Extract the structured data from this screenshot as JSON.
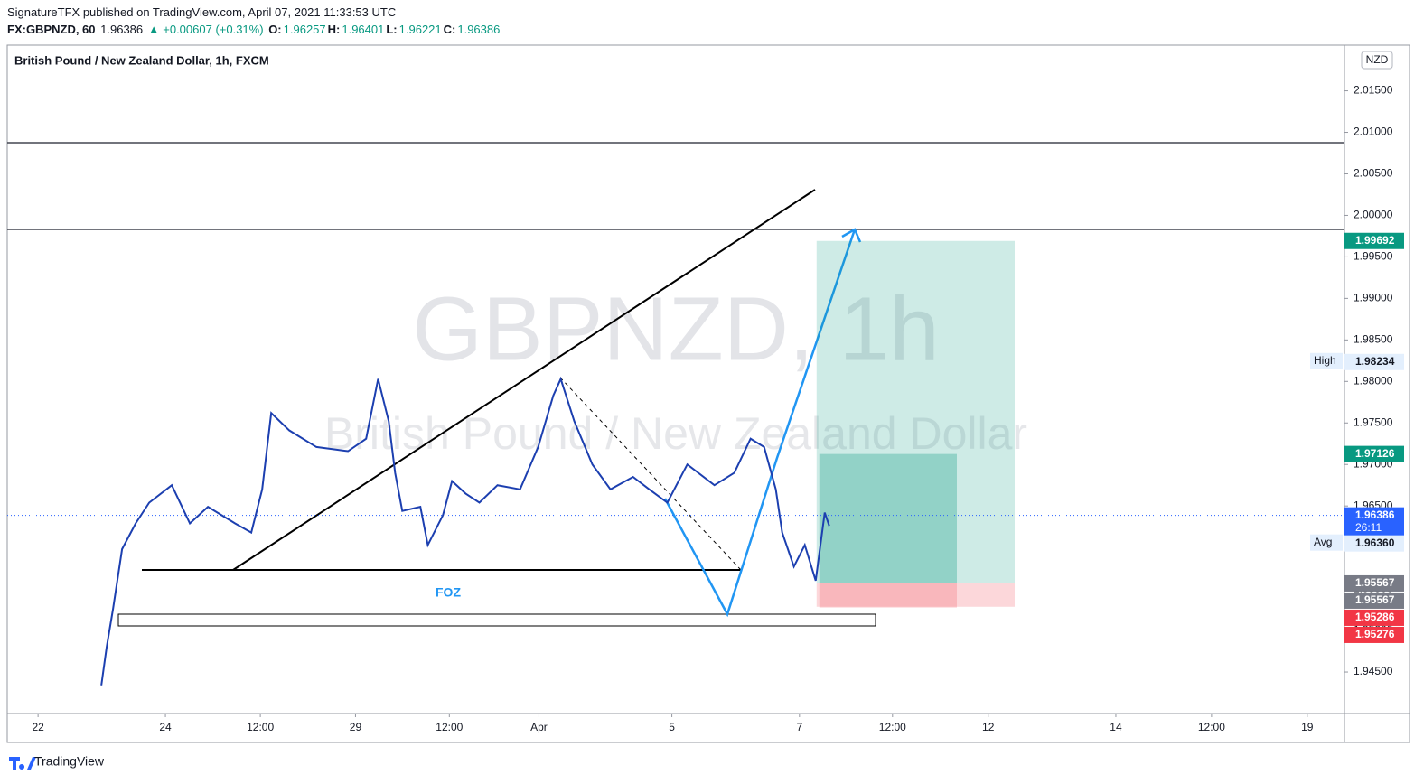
{
  "header": {
    "publisher": "SignatureTFX published on TradingView.com, April 07, 2021 11:33:53 UTC",
    "symbol": "FX:GBPNZD, 60",
    "last": "1.96386",
    "change": "▲ +0.00607 (+0.31%)",
    "ohlc": [
      {
        "key": "O:",
        "value": "1.96257"
      },
      {
        "key": "H:",
        "value": "1.96401"
      },
      {
        "key": "L:",
        "value": "1.96221"
      },
      {
        "key": "C:",
        "value": "1.96386"
      }
    ]
  },
  "chart_data": {
    "type": "line",
    "title": "British Pound / New Zealand Dollar, 1h, FXCM",
    "watermark": "GBPNZD, 1h",
    "watermark_subtitle": "British Pound / New Zealand Dollar",
    "currency": "NZD",
    "annotation": "FOZ",
    "xlim": [
      0,
      503
    ],
    "xticks": [
      {
        "value": 11.6,
        "label": "22"
      },
      {
        "value": 59.5,
        "label": "24"
      },
      {
        "value": 95.2,
        "label": "12:00"
      },
      {
        "value": 131,
        "label": "29"
      },
      {
        "value": 166.3,
        "label": "12:00"
      },
      {
        "value": 200,
        "label": "Apr"
      },
      {
        "value": 250,
        "label": "5"
      },
      {
        "value": 298,
        "label": "7"
      },
      {
        "value": 333,
        "label": "12:00"
      },
      {
        "value": 369,
        "label": "12"
      },
      {
        "value": 417,
        "label": "14"
      },
      {
        "value": 453,
        "label": "12:00"
      },
      {
        "value": 489,
        "label": "19"
      }
    ],
    "ylim": [
      1.94,
      2.0205
    ],
    "yticks": [
      {
        "value": 1.945,
        "label": "1.94500"
      },
      {
        "value": 1.95,
        "label": "1.95000"
      },
      {
        "value": 1.955,
        "label": "1.95500"
      },
      {
        "value": 1.96,
        "label": "1.96000"
      },
      {
        "value": 1.965,
        "label": "1.96500"
      },
      {
        "value": 1.97,
        "label": "1.97000"
      },
      {
        "value": 1.975,
        "label": "1.97500"
      },
      {
        "value": 1.98,
        "label": "1.98000"
      },
      {
        "value": 1.985,
        "label": "1.98500"
      },
      {
        "value": 1.99,
        "label": "1.99000"
      },
      {
        "value": 1.995,
        "label": "1.99500"
      },
      {
        "value": 2.0,
        "label": "2.00000"
      },
      {
        "value": 2.005,
        "label": "2.00500"
      },
      {
        "value": 2.01,
        "label": "2.01000"
      },
      {
        "value": 2.015,
        "label": "2.01500"
      }
    ],
    "series": [
      {
        "color": "#1c3fb0",
        "x": [
          35.4,
          37.4,
          39.8,
          43.2,
          48.3,
          53.4,
          61.9,
          68.7,
          75.5,
          85.7,
          91.8,
          95.9,
          99.3,
          106.1,
          116.3,
          128.2,
          135.0,
          139.5,
          143.5,
          145.9,
          148.6,
          155.4,
          158.2,
          163.9,
          167.3,
          172.4,
          177.6,
          184.4,
          192.9,
          199.7,
          205.4,
          208.2,
          213.3,
          220.1,
          226.9,
          235.4,
          241.5,
          248.3,
          255.8,
          266.0,
          273.5,
          279.6,
          284.7,
          289.1,
          291.5,
          295.9,
          300.0,
          304.1,
          307.5,
          309.2
        ],
        "values": [
          1.9434,
          1.948,
          1.9526,
          1.9598,
          1.9629,
          1.9654,
          1.9675,
          1.9629,
          1.9649,
          1.9629,
          1.9618,
          1.967,
          1.9762,
          1.9741,
          1.9721,
          1.9716,
          1.9731,
          1.9803,
          1.9752,
          1.969,
          1.9644,
          1.9649,
          1.9603,
          1.9639,
          1.968,
          1.9665,
          1.9654,
          1.9675,
          1.967,
          1.9721,
          1.9783,
          1.9803,
          1.9752,
          1.97,
          1.967,
          1.9685,
          1.967,
          1.9654,
          1.97,
          1.9675,
          1.969,
          1.9731,
          1.9721,
          1.967,
          1.9618,
          1.9577,
          1.9603,
          1.956,
          1.9642,
          1.9626
        ]
      }
    ],
    "price_labels": [
      {
        "value": 1.99692,
        "label": "1.99692",
        "color": "#089981"
      },
      {
        "value": 1.98234,
        "label": "1.98234",
        "color": "#e3effd",
        "tag": "High"
      },
      {
        "value": 1.97126,
        "label": "1.97126",
        "color": "#089981"
      },
      {
        "value": 1.96386,
        "label": "1.96386",
        "color": "#2962ff",
        "tag": "26:11"
      },
      {
        "value": 1.9636,
        "label": "1.96360",
        "color": "#e3effd",
        "tag": "Avg"
      },
      {
        "value": 1.95567,
        "label": "1.95567",
        "color": "#787b86"
      },
      {
        "value": 1.95567,
        "label": "1.95567",
        "color": "#787b86"
      },
      {
        "value": 1.95286,
        "label": "1.95286",
        "color": "#f23645"
      },
      {
        "value": 1.95276,
        "label": "1.95276",
        "color": "#f23645"
      }
    ]
  },
  "footer": {
    "brand": "TradingView"
  }
}
